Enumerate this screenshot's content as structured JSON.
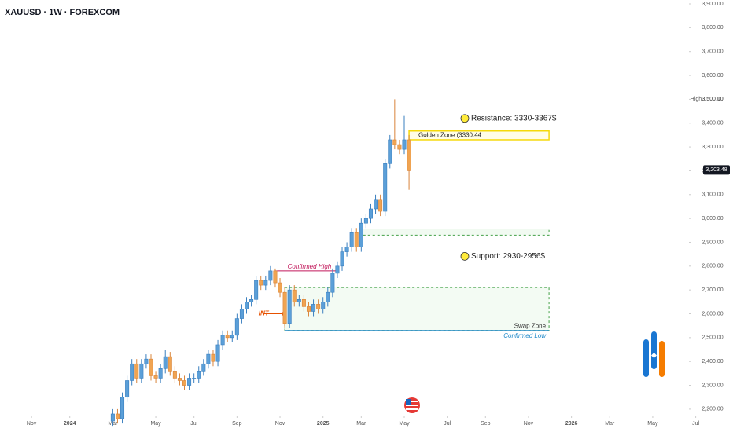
{
  "chart_data": {
    "type": "candlestick",
    "title": "XAUUSD · 1W · FOREXCOM",
    "up_color": "#5b9fd8",
    "down_color": "#f0a452",
    "x": [
      17,
      18,
      19,
      20,
      21,
      22,
      23,
      24,
      25,
      26,
      27,
      28,
      29,
      30,
      31,
      32,
      33,
      34,
      35,
      36,
      37,
      38,
      39,
      40,
      41,
      42,
      43,
      44,
      45,
      46,
      47,
      48,
      49,
      50,
      51,
      52,
      53,
      54,
      55,
      56,
      57,
      58,
      59,
      60,
      61,
      62,
      63,
      64,
      65,
      66,
      67,
      68,
      69,
      70,
      71,
      72,
      73,
      74,
      75,
      76,
      77,
      78,
      79
    ],
    "open": [
      2150,
      2180,
      2160,
      2250,
      2320,
      2390,
      2330,
      2390,
      2410,
      2340,
      2330,
      2370,
      2420,
      2360,
      2330,
      2320,
      2300,
      2330,
      2330,
      2360,
      2390,
      2430,
      2400,
      2470,
      2510,
      2500,
      2510,
      2580,
      2620,
      2650,
      2660,
      2740,
      2720,
      2740,
      2780,
      2730,
      2690,
      2560,
      2700,
      2650,
      2660,
      2630,
      2610,
      2640,
      2620,
      2650,
      2690,
      2770,
      2800,
      2860,
      2880,
      2940,
      2880,
      2980,
      3000,
      3040,
      3080,
      3030,
      3230,
      3330,
      3310,
      3290,
      3330
    ],
    "high": [
      2200,
      2200,
      2270,
      2340,
      2410,
      2410,
      2410,
      2430,
      2430,
      2360,
      2390,
      2450,
      2440,
      2380,
      2350,
      2340,
      2350,
      2350,
      2380,
      2410,
      2450,
      2450,
      2490,
      2530,
      2530,
      2530,
      2600,
      2640,
      2670,
      2680,
      2760,
      2760,
      2760,
      2800,
      2790,
      2750,
      2710,
      2720,
      2720,
      2680,
      2680,
      2650,
      2660,
      2660,
      2670,
      2710,
      2790,
      2820,
      2880,
      2900,
      2960,
      2960,
      3000,
      3020,
      3060,
      3100,
      3100,
      3250,
      3350,
      3500,
      3330,
      3430,
      3350
    ],
    "low": [
      2130,
      2140,
      2140,
      2230,
      2300,
      2310,
      2310,
      2370,
      2320,
      2310,
      2310,
      2350,
      2340,
      2310,
      2300,
      2280,
      2280,
      2310,
      2310,
      2340,
      2370,
      2380,
      2380,
      2450,
      2480,
      2480,
      2490,
      2560,
      2600,
      2630,
      2640,
      2700,
      2700,
      2720,
      2710,
      2670,
      2540,
      2540,
      2630,
      2630,
      2610,
      2590,
      2590,
      2600,
      2600,
      2630,
      2670,
      2750,
      2780,
      2840,
      2860,
      2860,
      2860,
      2960,
      2980,
      3020,
      3010,
      3010,
      3210,
      3290,
      3270,
      3270,
      3120
    ],
    "close": [
      2180,
      2160,
      2250,
      2320,
      2390,
      2330,
      2390,
      2410,
      2340,
      2330,
      2370,
      2420,
      2360,
      2330,
      2320,
      2300,
      2330,
      2330,
      2360,
      2390,
      2430,
      2400,
      2470,
      2510,
      2500,
      2510,
      2580,
      2620,
      2650,
      2660,
      2740,
      2720,
      2740,
      2780,
      2730,
      2690,
      2560,
      2700,
      2650,
      2660,
      2630,
      2610,
      2640,
      2620,
      2650,
      2690,
      2770,
      2800,
      2860,
      2880,
      2940,
      2880,
      2980,
      3000,
      3040,
      3080,
      3030,
      3230,
      3330,
      3310,
      3290,
      3330,
      3200
    ],
    "xlim": [
      -6.6,
      146.8
    ],
    "xticks": [
      {
        "value": 0,
        "label": "Nov"
      },
      {
        "value": 8,
        "label": "2024"
      },
      {
        "value": 17,
        "label": "Mar"
      },
      {
        "value": 26,
        "label": "May"
      },
      {
        "value": 34,
        "label": "Jul"
      },
      {
        "value": 43,
        "label": "Sep"
      },
      {
        "value": 52,
        "label": "Nov"
      },
      {
        "value": 61,
        "label": "2025"
      },
      {
        "value": 69,
        "label": "Mar"
      },
      {
        "value": 78,
        "label": "May"
      },
      {
        "value": 87,
        "label": "Jul"
      },
      {
        "value": 95,
        "label": "Sep"
      },
      {
        "value": 104,
        "label": "Nov"
      },
      {
        "value": 113,
        "label": "2026"
      },
      {
        "value": 121,
        "label": "Mar"
      },
      {
        "value": 130,
        "label": "May"
      },
      {
        "value": 139,
        "label": "Jul"
      }
    ],
    "ylim": [
      2170,
      3916.5
    ],
    "yticks": [
      {
        "value": 2200,
        "label": "2,200.00"
      },
      {
        "value": 2300,
        "label": "2,300.00"
      },
      {
        "value": 2400,
        "label": "2,400.00"
      },
      {
        "value": 2500,
        "label": "2,500.00"
      },
      {
        "value": 2600,
        "label": "2,600.00"
      },
      {
        "value": 2700,
        "label": "2,700.00"
      },
      {
        "value": 2800,
        "label": "2,800.00"
      },
      {
        "value": 2900,
        "label": "2,900.00"
      },
      {
        "value": 3000,
        "label": "3,000.00"
      },
      {
        "value": 3100,
        "label": "3,100.00"
      },
      {
        "value": 3200,
        "label": "3,200.00"
      },
      {
        "value": 3300,
        "label": "3,300.00"
      },
      {
        "value": 3400,
        "label": "3,400.00"
      },
      {
        "value": 3500,
        "label": "3,500.00"
      },
      {
        "value": 3600,
        "label": "3,600.00"
      },
      {
        "value": 3700,
        "label": "3,700.00"
      },
      {
        "value": 3800,
        "label": "3,800.00"
      },
      {
        "value": 3900,
        "label": "3,900.00"
      }
    ],
    "high_marker": {
      "name": "High",
      "value": 3500.1,
      "label": "3,500.10"
    },
    "last_price": {
      "value": 3203.48,
      "label": "3,203.48"
    },
    "resistance": "Resistance: 3330-3367$",
    "support": "Support: 2930-2956$",
    "zones": [
      {
        "name": "Golden Zone (3330.44",
        "low": 3330,
        "high": 3367,
        "x": [
          79,
          108.3
        ],
        "style": "golden"
      },
      {
        "low": 2930,
        "high": 2956,
        "x": [
          69,
          108.3
        ],
        "style": "support"
      },
      {
        "name": "Swap Zone",
        "low": 2530,
        "high": 2710,
        "x": [
          53,
          108.3
        ],
        "style": "swap"
      }
    ],
    "levels": [
      {
        "name": "Confirmed High",
        "value": 2780,
        "x": [
          51,
          64
        ],
        "color": "#c2185b"
      },
      {
        "name": "Confirmed Low",
        "value": 2530,
        "x": [
          53,
          108.3
        ],
        "color": "#1e88c8"
      },
      {
        "name": "INT",
        "value": 2600,
        "x": [
          48.5,
          53
        ],
        "color": "#e65100"
      }
    ]
  }
}
